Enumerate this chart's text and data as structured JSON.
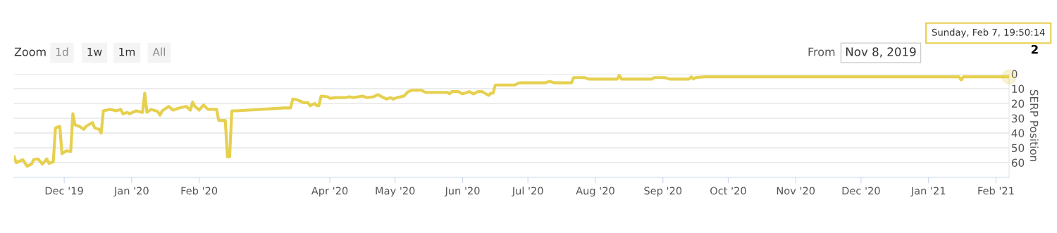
{
  "chart_data": {
    "type": "line",
    "ylabel": "SERP Position",
    "color": "#e6d04f",
    "grid": "y",
    "legend": false,
    "x": [
      "2019-11-08",
      "2019-11-09",
      "2019-11-12",
      "2019-11-14",
      "2019-11-16",
      "2019-11-17",
      "2019-11-19",
      "2019-11-21",
      "2019-11-23",
      "2019-11-24",
      "2019-11-26",
      "2019-11-27",
      "2019-11-29",
      "2019-11-30",
      "2019-12-02",
      "2019-12-04",
      "2019-12-05",
      "2019-12-06",
      "2019-12-08",
      "2019-12-10",
      "2019-12-11",
      "2019-12-14",
      "2019-12-15",
      "2019-12-17",
      "2019-12-18",
      "2019-12-19",
      "2019-12-22",
      "2019-12-25",
      "2019-12-27",
      "2019-12-28",
      "2019-12-30",
      "2019-12-31",
      "2020-01-03",
      "2020-01-06",
      "2020-01-07",
      "2020-01-08",
      "2020-01-10",
      "2020-01-13",
      "2020-01-14",
      "2020-01-15",
      "2020-01-18",
      "2020-01-20",
      "2020-01-23",
      "2020-01-26",
      "2020-01-28",
      "2020-01-29",
      "2020-01-30",
      "2020-02-01",
      "2020-02-03",
      "2020-02-05",
      "2020-02-09",
      "2020-02-10",
      "2020-02-13",
      "2020-02-14",
      "2020-02-15",
      "2020-02-16",
      "2020-02-18",
      "2020-03-11",
      "2020-03-14",
      "2020-03-15",
      "2020-03-17",
      "2020-03-20",
      "2020-03-22",
      "2020-03-23",
      "2020-03-25",
      "2020-03-26",
      "2020-03-27",
      "2020-03-28",
      "2020-03-31",
      "2020-04-01",
      "2020-04-04",
      "2020-04-08",
      "2020-04-10",
      "2020-04-12",
      "2020-04-16",
      "2020-04-18",
      "2020-04-21",
      "2020-04-23",
      "2020-04-25",
      "2020-04-27",
      "2020-04-29",
      "2020-04-30",
      "2020-05-02",
      "2020-05-05",
      "2020-05-07",
      "2020-05-09",
      "2020-05-13",
      "2020-05-15",
      "2020-05-25",
      "2020-05-26",
      "2020-05-27",
      "2020-05-30",
      "2020-06-01",
      "2020-06-04",
      "2020-06-06",
      "2020-06-08",
      "2020-06-10",
      "2020-06-13",
      "2020-06-14",
      "2020-06-15",
      "2020-06-16",
      "2020-06-25",
      "2020-06-27",
      "2020-07-09",
      "2020-07-11",
      "2020-07-13",
      "2020-07-21",
      "2020-07-22",
      "2020-07-27",
      "2020-07-29",
      "2020-08-11",
      "2020-08-12",
      "2020-08-13",
      "2020-08-27",
      "2020-08-28",
      "2020-09-02",
      "2020-09-04",
      "2020-09-13",
      "2020-09-14",
      "2020-09-15",
      "2020-09-16",
      "2020-09-20",
      "2021-01-15",
      "2021-01-16",
      "2021-01-17",
      "2021-02-07"
    ],
    "values": [
      56,
      60,
      58,
      62.5,
      61,
      58,
      57.5,
      61,
      57.5,
      60.5,
      59.5,
      36.5,
      35.5,
      54,
      52,
      52.5,
      27,
      34.5,
      35.5,
      37.5,
      35.5,
      33,
      36.5,
      37.5,
      40,
      25,
      24,
      25,
      24,
      27,
      26,
      27,
      25,
      26,
      13,
      26,
      24,
      25.5,
      28,
      25,
      22,
      24.5,
      23,
      22,
      24.5,
      19,
      22,
      24.5,
      21,
      24,
      24,
      31.5,
      31.5,
      56,
      56,
      25,
      25,
      23,
      23,
      17,
      17.5,
      19.5,
      19.5,
      21.5,
      20,
      21.5,
      21.5,
      15,
      15.5,
      16.5,
      16,
      16,
      15.5,
      16,
      15,
      16,
      15.5,
      14,
      15.5,
      17,
      16,
      17,
      16,
      15,
      12,
      11,
      11,
      12.5,
      12.5,
      13.5,
      12,
      12,
      13.5,
      12,
      13.5,
      12,
      12,
      14.5,
      13,
      13,
      7.5,
      7.5,
      6,
      6,
      5,
      6,
      6,
      2.5,
      2.5,
      3.5,
      3.5,
      1,
      3.5,
      3.5,
      2.5,
      2.5,
      3.5,
      3.5,
      2,
      3.5,
      2.5,
      2,
      2,
      4,
      2,
      2
    ],
    "xlim": [
      "2019-11-08",
      "2021-02-07"
    ],
    "xticks": [
      {
        "value": "2019-12-01",
        "label": "Dec '19"
      },
      {
        "value": "2020-01-01",
        "label": "Jan '20"
      },
      {
        "value": "2020-02-01",
        "label": "Feb '20"
      },
      {
        "value": "2020-04-01",
        "label": "Apr '20"
      },
      {
        "value": "2020-05-01",
        "label": "May '20"
      },
      {
        "value": "2020-06-01",
        "label": "Jun '20"
      },
      {
        "value": "2020-07-01",
        "label": "Jul '20"
      },
      {
        "value": "2020-08-01",
        "label": "Aug '20"
      },
      {
        "value": "2020-09-01",
        "label": "Sep '20"
      },
      {
        "value": "2020-10-01",
        "label": "Oct '20"
      },
      {
        "value": "2020-11-01",
        "label": "Nov '20"
      },
      {
        "value": "2020-12-01",
        "label": "Dec '20"
      },
      {
        "value": "2021-01-01",
        "label": "Jan '21"
      },
      {
        "value": "2021-02-01",
        "label": "Feb '21"
      }
    ],
    "ylim": [
      70,
      0
    ],
    "yticks": [
      0,
      10,
      20,
      30,
      40,
      50,
      60
    ],
    "annotations": [
      "Zoom",
      "1d",
      "1w",
      "1m",
      "All",
      "From",
      "Nov 8, 2019",
      "Sunday, Feb 7, 19:50:14",
      {
        "text": "2",
        "x": "2021-02-07",
        "y": 2
      }
    ]
  }
}
